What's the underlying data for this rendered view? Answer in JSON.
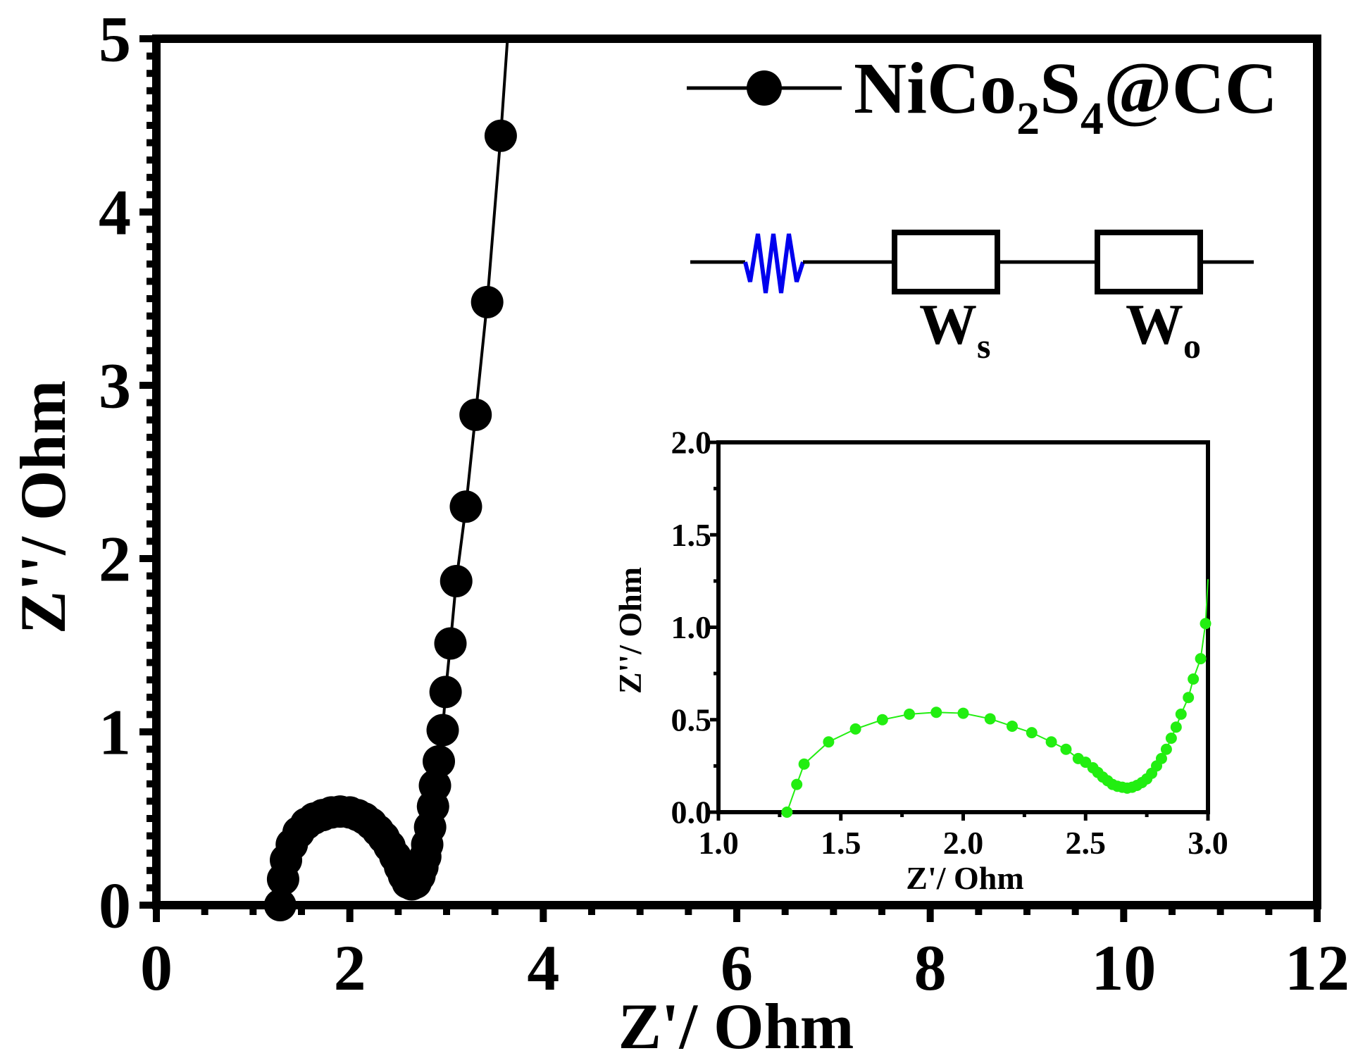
{
  "chart_data": [
    {
      "id": "main",
      "type": "scatter",
      "xlabel": "Z'/ Ohm",
      "ylabel": "Z''/ Ohm",
      "xlim": [
        0,
        12
      ],
      "ylim": [
        0,
        5
      ],
      "xticks": [
        "0",
        "2",
        "4",
        "6",
        "8",
        "10",
        "12"
      ],
      "yticks": [
        "0",
        "1",
        "2",
        "3",
        "4",
        "5"
      ],
      "legend": {
        "label_main": "NiCo",
        "sub1": "2",
        "label_mid": "S",
        "sub2": "4",
        "label_end": "@CC",
        "placement": "top-right"
      },
      "series": [
        {
          "name": "NiCo2S4@CC",
          "color": "#000000",
          "line_end": [
            3.63,
            5.0
          ],
          "points": [
            [
              1.28,
              0.0
            ],
            [
              1.31,
              0.15
            ],
            [
              1.34,
              0.26
            ],
            [
              1.4,
              0.35
            ],
            [
              1.47,
              0.42
            ],
            [
              1.55,
              0.47
            ],
            [
              1.63,
              0.5
            ],
            [
              1.72,
              0.52
            ],
            [
              1.81,
              0.535
            ],
            [
              1.9,
              0.54
            ],
            [
              2.0,
              0.535
            ],
            [
              2.08,
              0.52
            ],
            [
              2.15,
              0.5
            ],
            [
              2.22,
              0.47
            ],
            [
              2.29,
              0.43
            ],
            [
              2.35,
              0.39
            ],
            [
              2.41,
              0.34
            ],
            [
              2.47,
              0.28
            ],
            [
              2.52,
              0.22
            ],
            [
              2.56,
              0.17
            ],
            [
              2.6,
              0.13
            ],
            [
              2.64,
              0.12
            ],
            [
              2.68,
              0.13
            ],
            [
              2.72,
              0.17
            ],
            [
              2.75,
              0.22
            ],
            [
              2.78,
              0.28
            ],
            [
              2.8,
              0.35
            ],
            [
              2.83,
              0.45
            ],
            [
              2.86,
              0.57
            ],
            [
              2.88,
              0.69
            ],
            [
              2.92,
              0.83
            ],
            [
              2.96,
              1.01
            ],
            [
              2.99,
              1.23
            ],
            [
              3.04,
              1.51
            ],
            [
              3.1,
              1.87
            ],
            [
              3.2,
              2.3
            ],
            [
              3.3,
              2.83
            ],
            [
              3.42,
              3.48
            ],
            [
              3.56,
              4.44
            ]
          ]
        }
      ]
    },
    {
      "id": "inset",
      "type": "scatter",
      "xlabel": "Z'/ Ohm",
      "ylabel": "Z''/ Ohm",
      "xlim": [
        1.0,
        3.0
      ],
      "ylim": [
        0.0,
        2.0
      ],
      "xticks": [
        "1.0",
        "1.5",
        "2.0",
        "2.5",
        "3.0"
      ],
      "yticks": [
        "0.0",
        "0.5",
        "1.0",
        "1.5",
        "2.0"
      ],
      "series": [
        {
          "name": "NiCo2S4@CC",
          "color": "#22ee11",
          "line_end": [
            3.0,
            1.26
          ],
          "points": [
            [
              1.28,
              0.0
            ],
            [
              1.32,
              0.15
            ],
            [
              1.35,
              0.26
            ],
            [
              1.45,
              0.38
            ],
            [
              1.56,
              0.45
            ],
            [
              1.67,
              0.5
            ],
            [
              1.78,
              0.53
            ],
            [
              1.89,
              0.54
            ],
            [
              2.0,
              0.535
            ],
            [
              2.11,
              0.505
            ],
            [
              2.2,
              0.465
            ],
            [
              2.28,
              0.43
            ],
            [
              2.36,
              0.38
            ],
            [
              2.42,
              0.34
            ],
            [
              2.47,
              0.29
            ],
            [
              2.5,
              0.27
            ],
            [
              2.53,
              0.24
            ],
            [
              2.55,
              0.215
            ],
            [
              2.57,
              0.19
            ],
            [
              2.59,
              0.17
            ],
            [
              2.61,
              0.15
            ],
            [
              2.63,
              0.14
            ],
            [
              2.65,
              0.135
            ],
            [
              2.67,
              0.13
            ],
            [
              2.69,
              0.135
            ],
            [
              2.71,
              0.145
            ],
            [
              2.73,
              0.16
            ],
            [
              2.75,
              0.18
            ],
            [
              2.77,
              0.21
            ],
            [
              2.79,
              0.25
            ],
            [
              2.81,
              0.29
            ],
            [
              2.83,
              0.34
            ],
            [
              2.85,
              0.4
            ],
            [
              2.87,
              0.46
            ],
            [
              2.89,
              0.53
            ],
            [
              2.92,
              0.62
            ],
            [
              2.94,
              0.72
            ],
            [
              2.97,
              0.83
            ],
            [
              2.99,
              1.02
            ]
          ]
        }
      ]
    }
  ],
  "circuit": {
    "elements": [
      "resistor",
      "warburg-short",
      "warburg-open"
    ],
    "label_ws_main": "W",
    "label_ws_sub": "s",
    "label_wo_main": "W",
    "label_wo_sub": "o",
    "resistor_color": "#0000ee"
  }
}
